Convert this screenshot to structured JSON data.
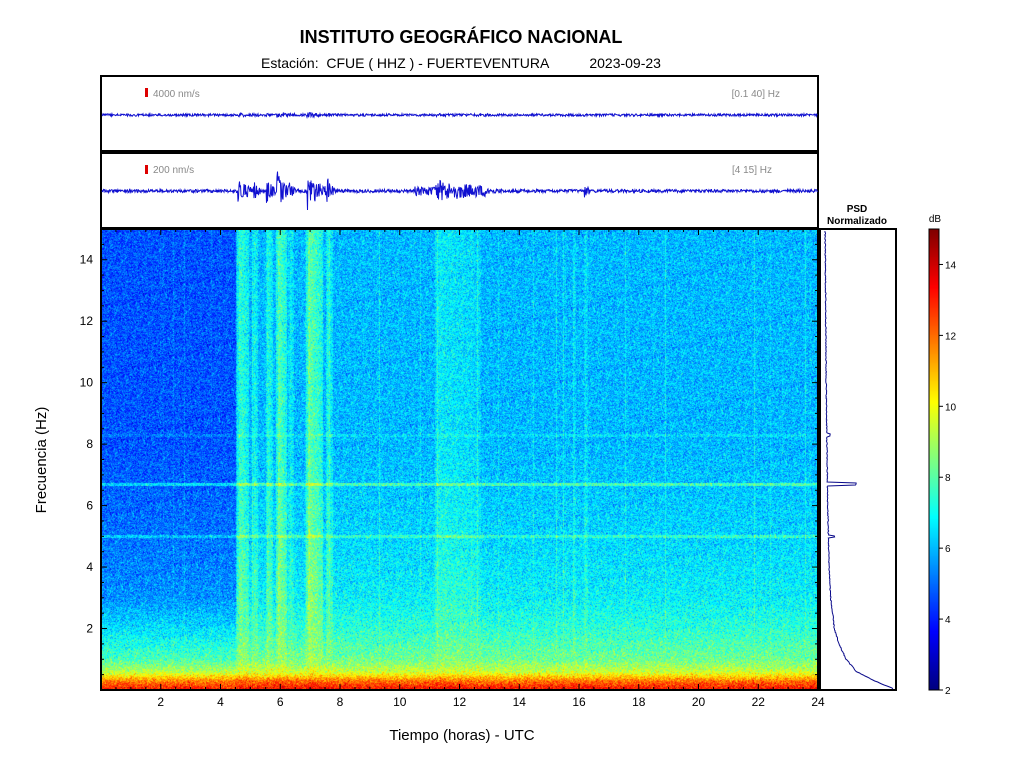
{
  "header": {
    "title": "INSTITUTO GEOGRÁFICO NACIONAL",
    "station": "Estación:  CFUE ( HHZ ) - FUERTEVENTURA",
    "date": "2023-09-23"
  },
  "traces": [
    {
      "scale_label": "4000 nm/s",
      "band_label": "[0.1 40] Hz"
    },
    {
      "scale_label": "200 nm/s",
      "band_label": "[4 15] Hz"
    }
  ],
  "psd": {
    "title_line1": "PSD",
    "title_line2": "Normalizado"
  },
  "colorbar": {
    "unit": "dB",
    "range": [
      2,
      15
    ],
    "ticks": [
      "2",
      "4",
      "6",
      "8",
      "10",
      "12",
      "14"
    ],
    "colormap": "jet"
  },
  "colors": {
    "trace": "#1010d0",
    "marker": "#dd0000",
    "psd_line": "#0a0a8a",
    "frame": "#000000"
  },
  "chart_data": {
    "type": "heatmap",
    "xlabel": "Tiempo (horas) - UTC",
    "ylabel": "Frecuencia  (Hz)",
    "xlim": [
      0,
      24
    ],
    "ylim": [
      0,
      15
    ],
    "xticks": [
      "2",
      "4",
      "6",
      "8",
      "10",
      "12",
      "14",
      "16",
      "18",
      "20",
      "22",
      "24"
    ],
    "yticks": [
      "2",
      "4",
      "6",
      "8",
      "10",
      "12",
      "14"
    ],
    "noise_level_by_frequency_db": [
      {
        "hz": 0.0,
        "db": 13.5
      },
      {
        "hz": 0.3,
        "db": 12.0
      },
      {
        "hz": 0.6,
        "db": 9.5
      },
      {
        "hz": 1.0,
        "db": 8.3
      },
      {
        "hz": 2.0,
        "db": 7.4
      },
      {
        "hz": 3.0,
        "db": 6.8
      },
      {
        "hz": 5.0,
        "db": 6.4
      },
      {
        "hz": 8.0,
        "db": 6.0
      },
      {
        "hz": 12.0,
        "db": 6.0
      },
      {
        "hz": 15.0,
        "db": 6.0
      }
    ],
    "quiet_period_hours": [
      0,
      4.5
    ],
    "quiet_period_offset_db": -1.3,
    "persistent_tones_hz": [
      6.7,
      5.0,
      8.3
    ],
    "events": [
      {
        "hour": 4.6,
        "duration_h": 0.35,
        "amplitude": 0.7
      },
      {
        "hour": 5.1,
        "duration_h": 0.15,
        "amplitude": 0.5
      },
      {
        "hour": 5.55,
        "duration_h": 0.2,
        "amplitude": 0.6
      },
      {
        "hour": 5.9,
        "duration_h": 0.3,
        "amplitude": 0.95
      },
      {
        "hour": 6.3,
        "duration_h": 0.15,
        "amplitude": 0.4
      },
      {
        "hour": 6.9,
        "duration_h": 0.5,
        "amplitude": 1.0
      },
      {
        "hour": 7.55,
        "duration_h": 0.2,
        "amplitude": 0.55
      },
      {
        "hour": 11.2,
        "duration_h": 1.5,
        "amplitude": 0.35
      },
      {
        "hour": 16.2,
        "duration_h": 0.1,
        "amplitude": 0.3
      }
    ],
    "psd_normalized": [
      {
        "hz": 0.05,
        "v": 0.97
      },
      {
        "hz": 0.3,
        "v": 0.72
      },
      {
        "hz": 0.6,
        "v": 0.48
      },
      {
        "hz": 1.0,
        "v": 0.34
      },
      {
        "hz": 1.5,
        "v": 0.24
      },
      {
        "hz": 2.0,
        "v": 0.18
      },
      {
        "hz": 3.0,
        "v": 0.13
      },
      {
        "hz": 4.0,
        "v": 0.11
      },
      {
        "hz": 5.0,
        "v": 0.1
      },
      {
        "hz": 6.0,
        "v": 0.09
      },
      {
        "hz": 8.0,
        "v": 0.08
      },
      {
        "hz": 10.0,
        "v": 0.07
      },
      {
        "hz": 12.0,
        "v": 0.065
      },
      {
        "hz": 15.0,
        "v": 0.055
      }
    ],
    "psd_peaks": [
      {
        "hz": 6.7,
        "v": 0.47
      },
      {
        "hz": 5.0,
        "v": 0.18
      },
      {
        "hz": 8.3,
        "v": 0.12
      }
    ]
  }
}
